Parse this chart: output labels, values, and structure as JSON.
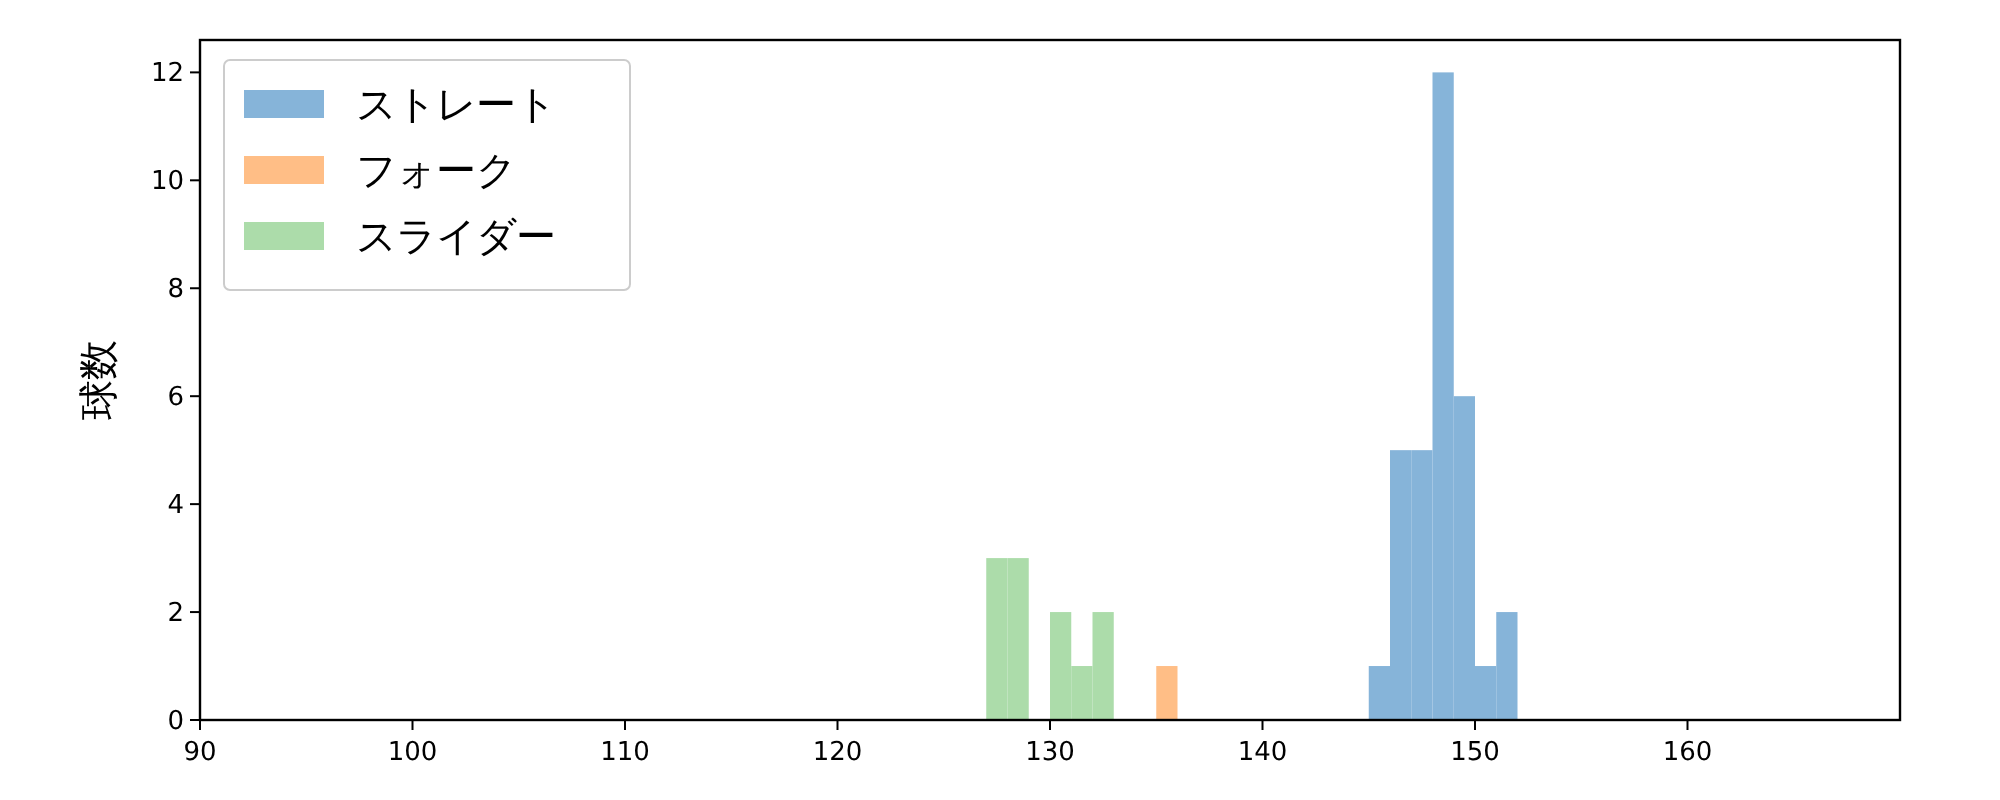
{
  "chart_data": {
    "type": "histogram",
    "ylabel": "球数",
    "xlim": [
      90,
      170
    ],
    "ylim": [
      0,
      12.6
    ],
    "xticks": [
      90,
      100,
      110,
      120,
      130,
      140,
      150,
      160
    ],
    "yticks": [
      0,
      2,
      4,
      6,
      8,
      10,
      12
    ],
    "grid": false,
    "legend": "top left",
    "bins": [
      127,
      128,
      129,
      130,
      131,
      132,
      133,
      134,
      135,
      136,
      137,
      138,
      139,
      140,
      141,
      142,
      143,
      144,
      145,
      146,
      147,
      148,
      149,
      150,
      151,
      152
    ],
    "series": [
      {
        "name": "ストレート",
        "color": "#86b4d9",
        "values": [
          0,
          0,
          0,
          0,
          0,
          0,
          0,
          0,
          0,
          0,
          0,
          0,
          0,
          0,
          0,
          0,
          0,
          0,
          1,
          5,
          5,
          12,
          6,
          1,
          2
        ]
      },
      {
        "name": "フォーク",
        "color": "#ffbe86",
        "values": [
          0,
          0,
          0,
          0,
          0,
          0,
          0,
          0,
          1,
          0,
          0,
          0,
          0,
          0,
          0,
          0,
          0,
          0,
          0,
          0,
          0,
          0,
          0,
          0,
          0
        ]
      },
      {
        "name": "スライダー",
        "color": "#acdcaa",
        "values": [
          3,
          3,
          0,
          2,
          1,
          2,
          0,
          0,
          0,
          0,
          0,
          0,
          0,
          0,
          0,
          0,
          0,
          0,
          0,
          0,
          0,
          0,
          0,
          0,
          0
        ]
      }
    ]
  }
}
